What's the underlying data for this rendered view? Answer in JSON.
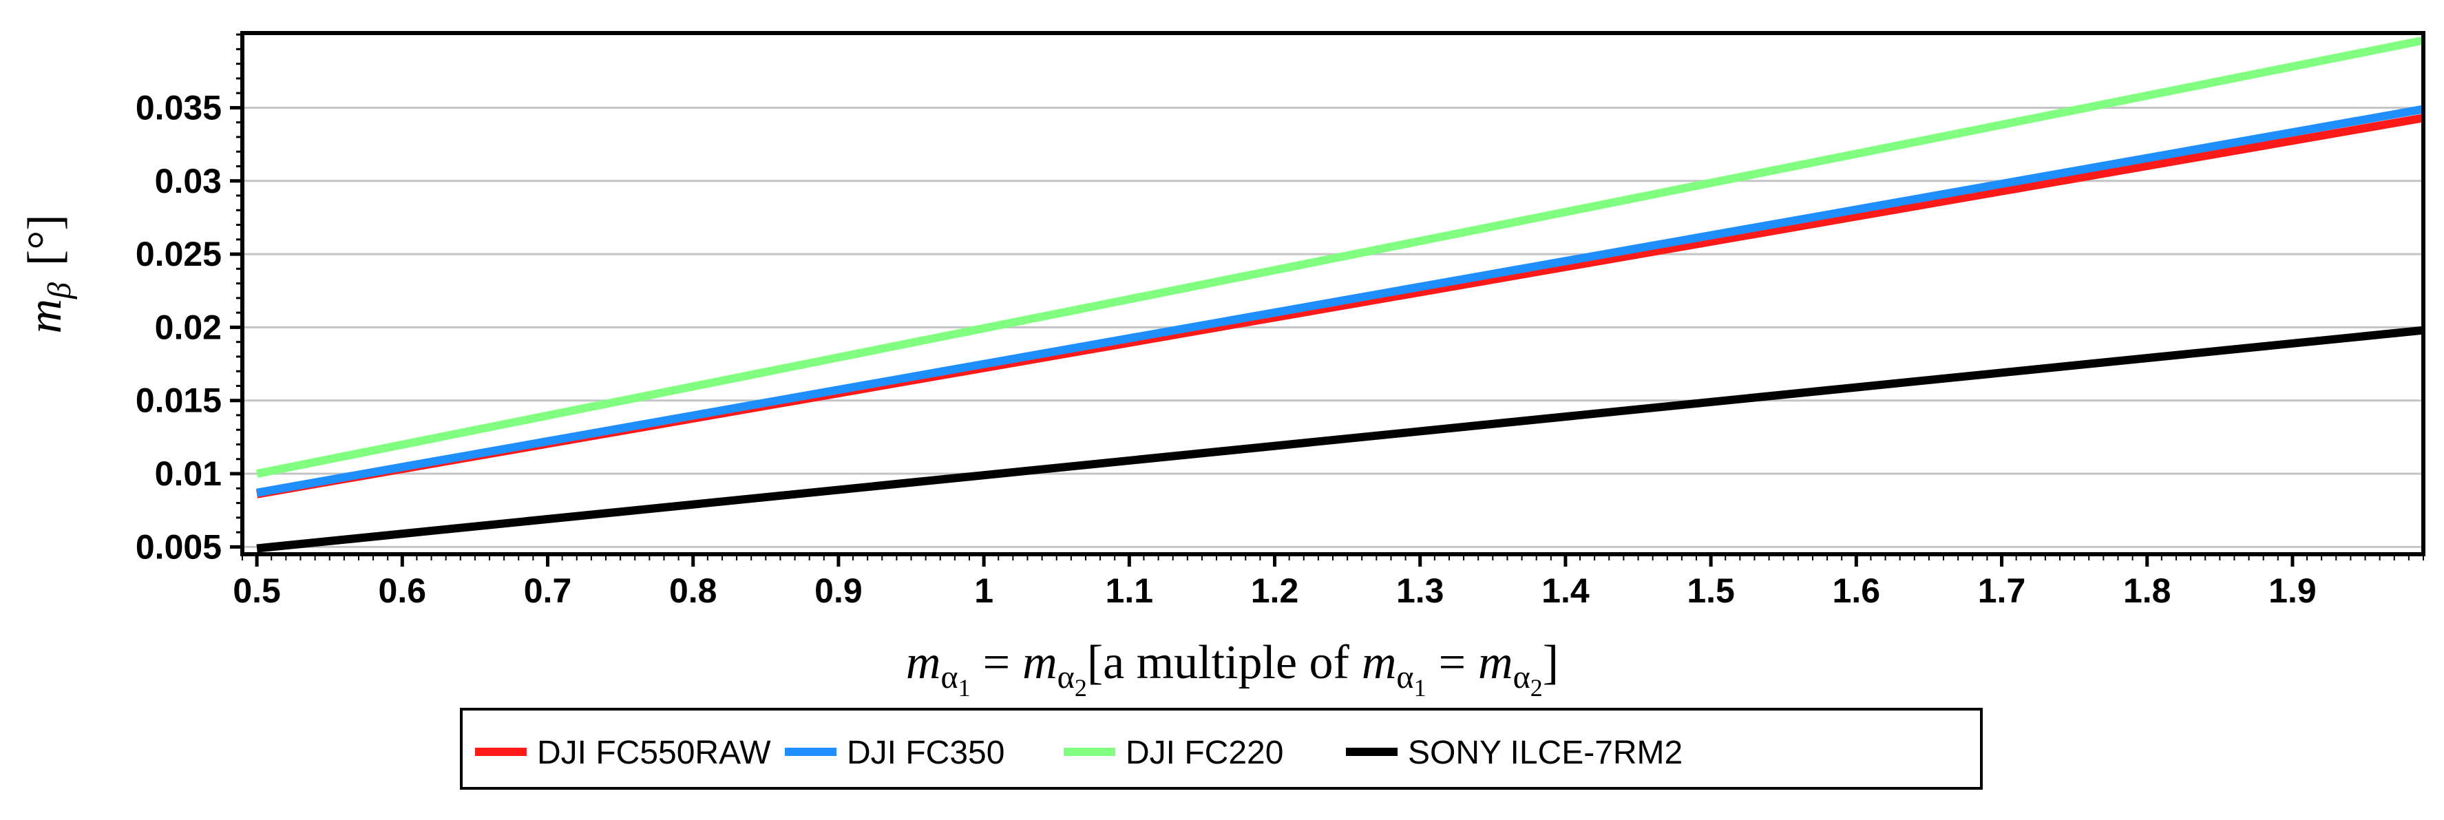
{
  "chart_data": {
    "type": "line",
    "title": "",
    "xlabel": "m_{α1} = m_{α2}[a multiple of m_{α1} = m_{α2}]",
    "ylabel": "m_β [°]",
    "xlim": [
      0.49,
      1.99
    ],
    "ylim": [
      0.0045,
      0.0401
    ],
    "x_ticks": [
      0.5,
      0.6,
      0.7,
      0.8,
      0.9,
      1.0,
      1.1,
      1.2,
      1.3,
      1.4,
      1.5,
      1.6,
      1.7,
      1.8,
      1.9
    ],
    "x_tick_labels": [
      "0.5",
      "0.6",
      "0.7",
      "0.8",
      "0.9",
      "1",
      "1.1",
      "1.2",
      "1.3",
      "1.4",
      "1.5",
      "1.6",
      "1.7",
      "1.8",
      "1.9"
    ],
    "y_ticks": [
      0.005,
      0.01,
      0.015,
      0.02,
      0.025,
      0.03,
      0.035
    ],
    "y_tick_labels": [
      "0.005",
      "0.01",
      "0.015",
      "0.02",
      "0.025",
      "0.03",
      "0.035"
    ],
    "grid": true,
    "legend_position": "bottom-center",
    "series": [
      {
        "name": "DJI FC550RAW",
        "color": "#ff1a1a",
        "x": [
          0.5,
          1.99
        ],
        "values": [
          0.0086,
          0.0343
        ]
      },
      {
        "name": "DJI FC350",
        "color": "#1f8fff",
        "x": [
          0.5,
          1.99
        ],
        "values": [
          0.0087,
          0.0349
        ]
      },
      {
        "name": "DJI FC220",
        "color": "#80ff80",
        "x": [
          0.5,
          1.99
        ],
        "values": [
          0.01,
          0.0396
        ]
      },
      {
        "name": "SONY ILCE-7RM2",
        "color": "#000000",
        "x": [
          0.5,
          1.99
        ],
        "values": [
          0.0049,
          0.0198
        ]
      }
    ]
  },
  "labels": {
    "y_main": "m",
    "y_sub": "β",
    "y_unit": "[°]",
    "x_m": "m",
    "x_alpha": "α",
    "x_sub1": "1",
    "x_sub2": "2",
    "x_eq": "=",
    "x_text": "[a multiple of",
    "x_close": "]"
  }
}
